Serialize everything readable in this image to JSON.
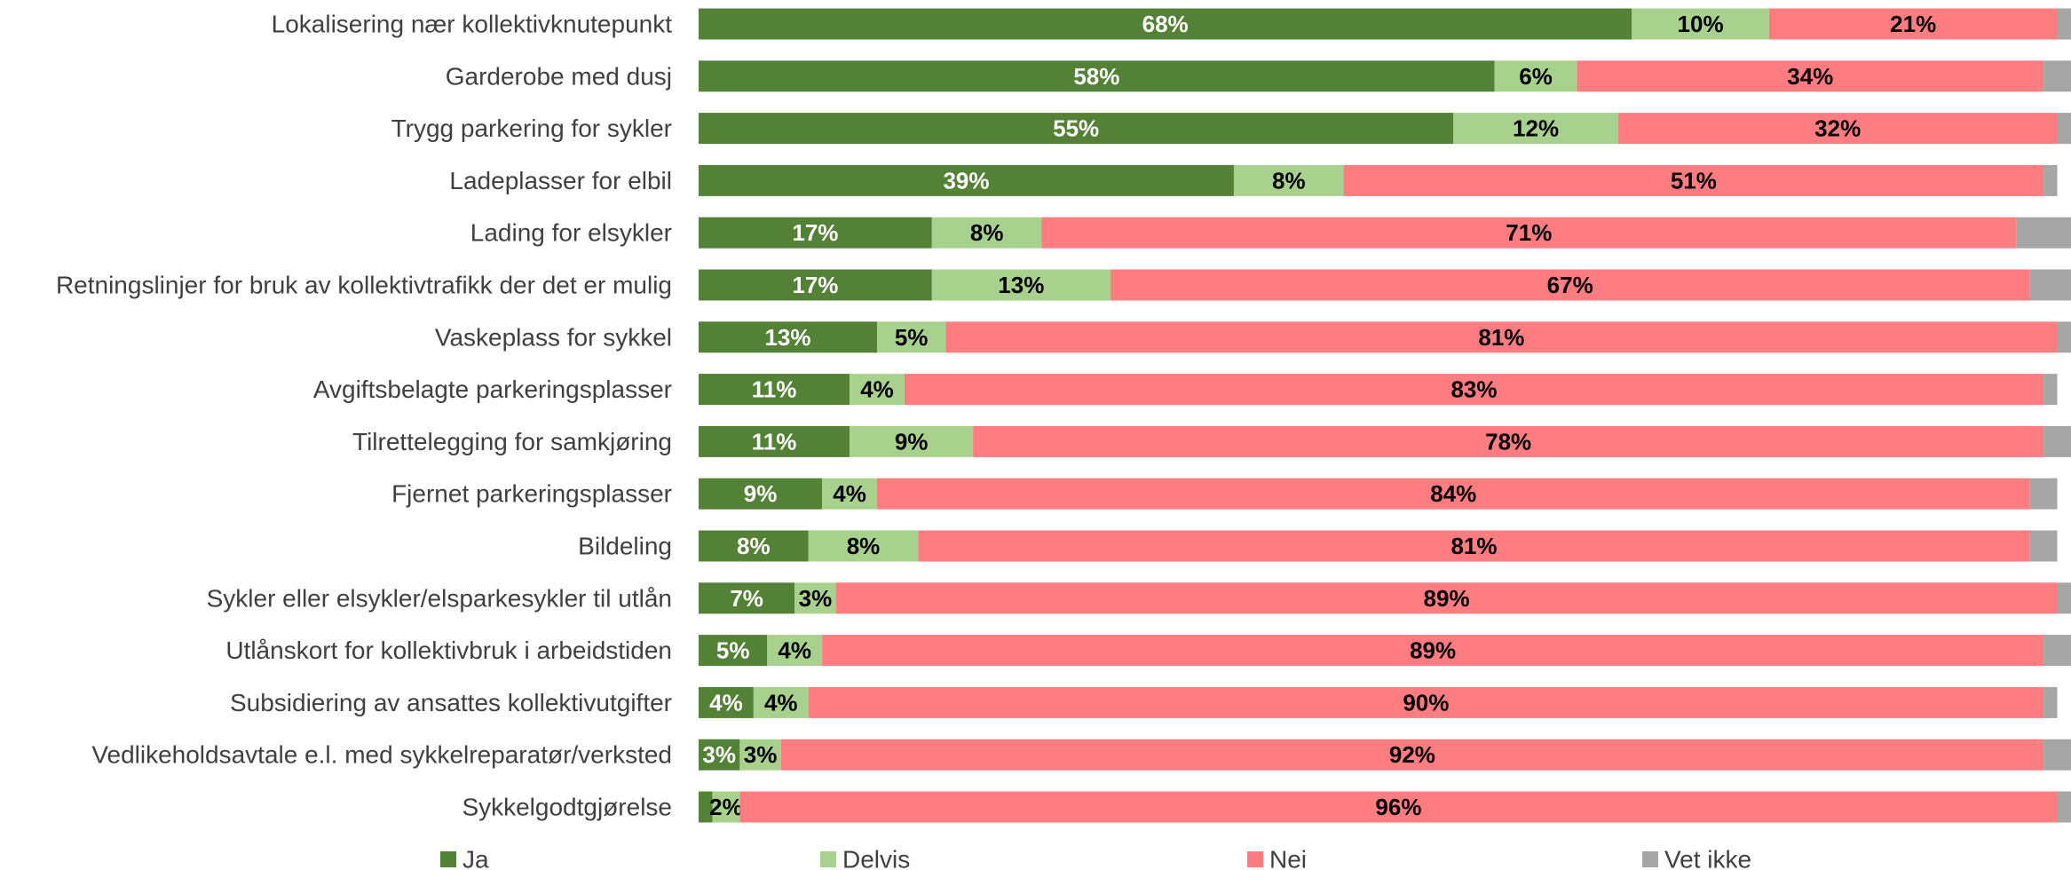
{
  "chart_data": {
    "type": "bar",
    "orientation": "horizontal",
    "stacked": true,
    "percent_stacked": true,
    "categories": [
      "Lokalisering nær kollektivknutepunkt",
      "Garderobe med dusj",
      "Trygg parkering for sykler",
      "Ladeplasser for elbil",
      "Lading for elsykler",
      "Retningslinjer for bruk av kollektivtrafikk der det er mulig",
      "Vaskeplass for sykkel",
      "Avgiftsbelagte parkeringsplasser",
      "Tilrettelegging for samkjøring",
      "Fjernet parkeringsplasser",
      "Bildeling",
      "Sykler eller elsykler/elsparkesykler til utlån",
      "Utlånskort for kollektivbruk i arbeidstiden",
      "Subsidiering av ansattes kollektivutgifter",
      "Vedlikeholdsavtale e.l. med sykkelreparatør/verksted",
      "Sykkelgodtgjørelse"
    ],
    "series": [
      {
        "name": "Ja",
        "color": "#538135",
        "label_color": "#ffffff",
        "values": [
          68,
          58,
          55,
          39,
          17,
          17,
          13,
          11,
          11,
          9,
          8,
          7,
          5,
          4,
          3,
          1
        ],
        "labels": [
          "68%",
          "58%",
          "55%",
          "39%",
          "17%",
          "17%",
          "13%",
          "11%",
          "11%",
          "9%",
          "8%",
          "7%",
          "5%",
          "4%",
          "3%",
          "1%"
        ]
      },
      {
        "name": "Delvis",
        "color": "#a9d18e",
        "label_color": "#000000",
        "values": [
          10,
          6,
          12,
          8,
          8,
          13,
          5,
          4,
          9,
          4,
          8,
          3,
          4,
          4,
          3,
          2
        ],
        "labels": [
          "10%",
          "6%",
          "12%",
          "8%",
          "8%",
          "13%",
          "5%",
          "4%",
          "9%",
          "4%",
          "8%",
          "3%",
          "4%",
          "4%",
          "3%",
          "2%"
        ]
      },
      {
        "name": "Nei",
        "color": "#ff7c80",
        "label_color": "#000000",
        "values": [
          21,
          34,
          32,
          51,
          71,
          67,
          81,
          83,
          78,
          84,
          81,
          89,
          89,
          90,
          92,
          96
        ],
        "labels": [
          "21%",
          "34%",
          "32%",
          "51%",
          "71%",
          "67%",
          "81%",
          "83%",
          "78%",
          "84%",
          "81%",
          "89%",
          "89%",
          "90%",
          "92%",
          "96%"
        ]
      },
      {
        "name": "Vet ikke",
        "color": "#a6a6a6",
        "label_color": "#000000",
        "values": [
          1,
          2,
          1,
          1,
          4,
          3,
          1,
          1,
          2,
          2,
          2,
          1,
          2,
          1,
          2,
          1
        ],
        "labels": [
          "",
          "",
          "",
          "",
          "",
          "",
          "",
          "",
          "",
          "",
          "",
          "",
          "",
          "",
          "",
          ""
        ]
      }
    ],
    "xlim": [
      0,
      100
    ],
    "legend_position": "bottom",
    "grid": false
  }
}
